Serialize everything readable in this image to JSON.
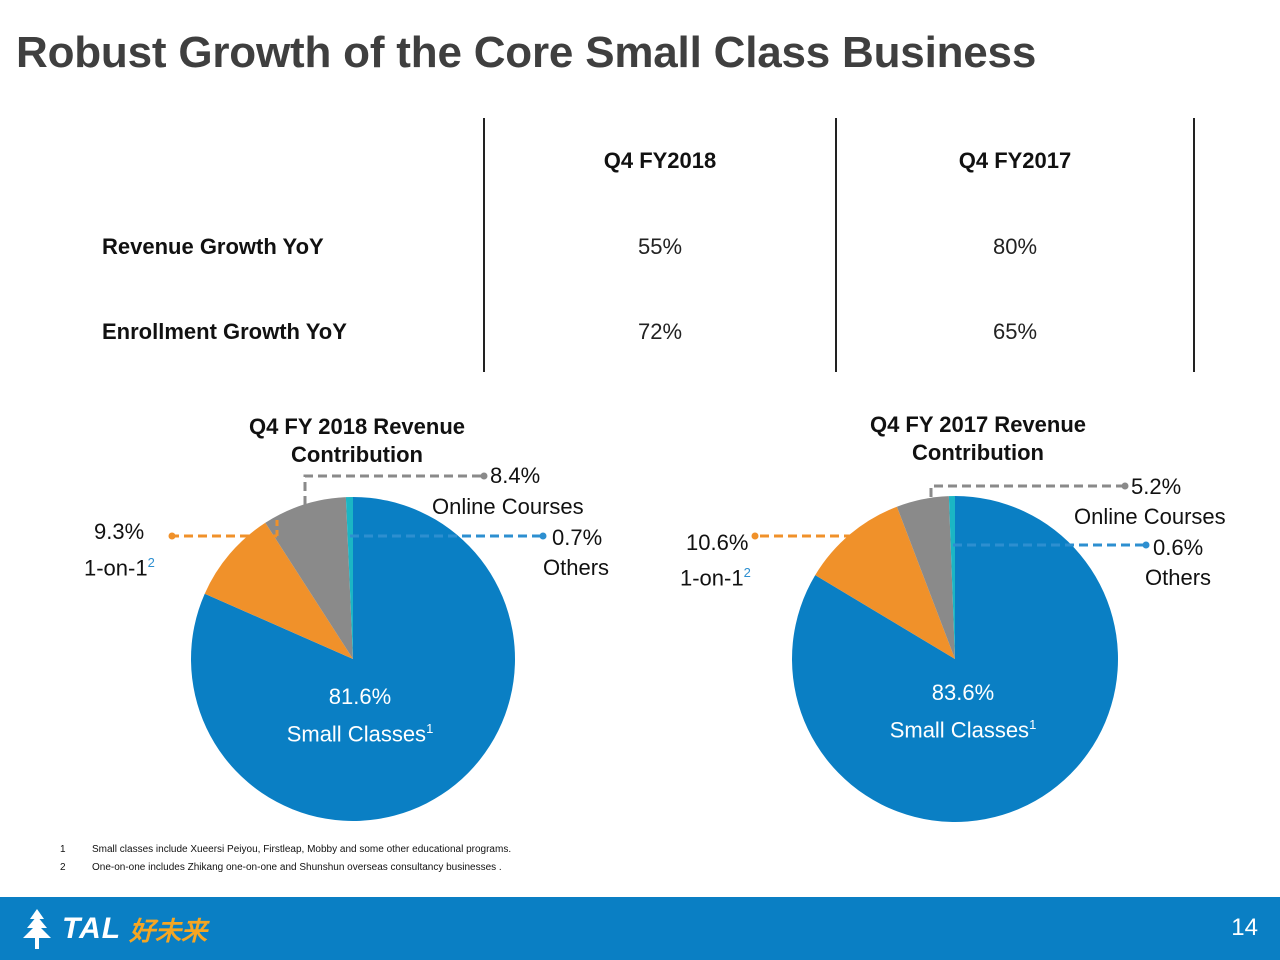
{
  "title": "Robust Growth of the Core Small Class Business",
  "table": {
    "columns": [
      "Q4 FY2018",
      "Q4 FY2017"
    ],
    "rows": [
      {
        "label": "Revenue Growth YoY",
        "values": [
          "55%",
          "80%"
        ]
      },
      {
        "label": "Enrollment Growth YoY",
        "values": [
          "72%",
          "65%"
        ]
      }
    ]
  },
  "colors": {
    "small_classes": "#0a7fc4",
    "one_on_one": "#f0912a",
    "online_courses": "#8a8a8a",
    "others": "#1bb6c4"
  },
  "chart_data": [
    {
      "type": "pie",
      "title_line1": "Q4 FY 2018 Revenue",
      "title_line2": "Contribution",
      "slices": [
        {
          "name": "Small Classes",
          "value": 81.6,
          "label": "81.6%",
          "text": "Small Classes",
          "sup": "1"
        },
        {
          "name": "1-on-1",
          "value": 9.3,
          "label": "9.3%",
          "text": "1-on-1",
          "sup": "2"
        },
        {
          "name": "Online Courses",
          "value": 8.4,
          "label": "8.4%",
          "text": "Online Courses"
        },
        {
          "name": "Others",
          "value": 0.7,
          "label": "0.7%",
          "text": "Others"
        }
      ]
    },
    {
      "type": "pie",
      "title_line1": "Q4 FY 2017 Revenue",
      "title_line2": "Contribution",
      "slices": [
        {
          "name": "Small Classes",
          "value": 83.6,
          "label": "83.6%",
          "text": "Small Classes",
          "sup": "1"
        },
        {
          "name": "1-on-1",
          "value": 10.6,
          "label": "10.6%",
          "text": "1-on-1",
          "sup": "2"
        },
        {
          "name": "Online Courses",
          "value": 5.2,
          "label": "5.2%",
          "text": "Online Courses"
        },
        {
          "name": "Others",
          "value": 0.6,
          "label": "0.6%",
          "text": "Others"
        }
      ]
    }
  ],
  "footnotes": [
    {
      "num": "1",
      "text": "Small classes include Xueersi Peiyou, Firstleap, Mobby and some other educational programs."
    },
    {
      "num": "2",
      "text": "One-on-one includes Zhikang one-on-one and Shunshun overseas consultancy businesses ."
    }
  ],
  "footer": {
    "logo_text": "TAL",
    "logo_cn": "好未来",
    "page_number": "14"
  }
}
